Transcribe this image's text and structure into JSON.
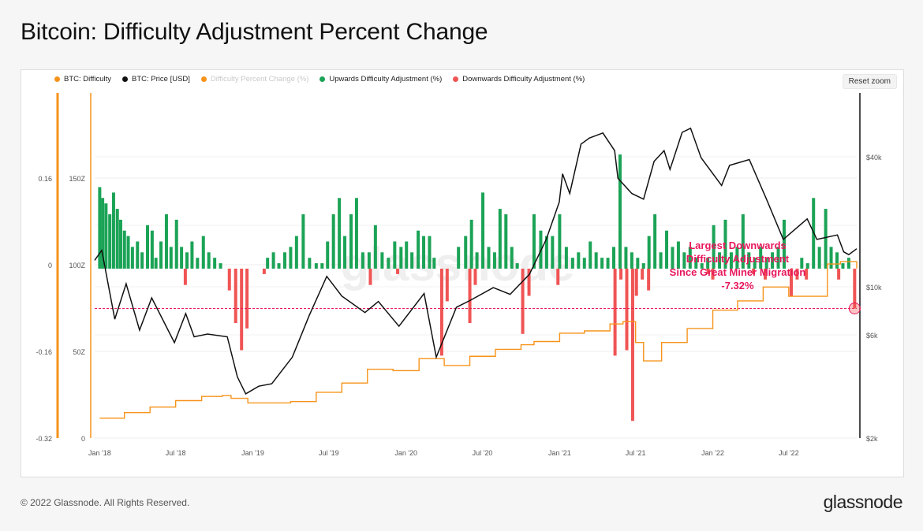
{
  "page": {
    "title": "Bitcoin: Difficulty Adjustment Percent Change"
  },
  "legend": [
    {
      "label": "BTC: Difficulty",
      "color": "#f7931a",
      "muted": false
    },
    {
      "label": "BTC: Price [USD]",
      "color": "#111111",
      "muted": false
    },
    {
      "label": "Difficulty Percent Change (%)",
      "color": "#f7931a",
      "muted": true
    },
    {
      "label": "Upwards Difficulty Adjustment (%)",
      "color": "#1ba356",
      "muted": false
    },
    {
      "label": "Downwards Difficulty Adjustment (%)",
      "color": "#f05454",
      "muted": false
    }
  ],
  "controls": {
    "reset_zoom": "Reset zoom"
  },
  "annotation": {
    "lines": [
      "Largest Downwards",
      "Difficulty Adjustment",
      "Since Great Miner Migration",
      "-7.32%"
    ]
  },
  "footer": {
    "copyright": "© 2022 Glassnode. All Rights Reserved.",
    "brand": "glassnode"
  },
  "colors": {
    "difficulty": "#f7931a",
    "price": "#111111",
    "up": "#1ba356",
    "down": "#f05454",
    "annotation": "#e8175d"
  },
  "chart_data": {
    "type": "bar",
    "x_range": [
      "2017-12-20",
      "2022-12-10"
    ],
    "x_ticks": [
      "Jan '18",
      "Jul '18",
      "Jan '19",
      "Jul '19",
      "Jan '20",
      "Jul '20",
      "Jan '21",
      "Jul '21",
      "Jan '22",
      "Jul '22"
    ],
    "y_axes": {
      "pct_change": {
        "ticks": [
          "0.16",
          "0",
          "-0.16",
          "-0.32"
        ],
        "range": [
          -0.32,
          0.32
        ]
      },
      "difficulty": {
        "ticks": [
          "150Z",
          "100Z",
          "50Z",
          "0"
        ],
        "range": [
          0,
          200
        ]
      },
      "price": {
        "ticks": [
          "$40k",
          "$10k",
          "$6k",
          "$2k"
        ],
        "scale": "log",
        "range": [
          2000,
          100000
        ]
      }
    },
    "reference_line": {
      "value": -0.0732,
      "label": "-7.32%"
    },
    "series": [
      {
        "name": "Upwards Difficulty Adjustment (%)",
        "x": [
          "2018-01-01",
          "2018-01-08",
          "2018-01-16",
          "2018-01-25",
          "2018-02-03",
          "2018-02-12",
          "2018-02-20",
          "2018-03-01",
          "2018-03-10",
          "2018-03-20",
          "2018-04-01",
          "2018-04-12",
          "2018-04-25",
          "2018-05-06",
          "2018-05-15",
          "2018-05-27",
          "2018-06-09",
          "2018-06-20",
          "2018-07-03",
          "2018-07-15",
          "2018-07-28",
          "2018-08-09",
          "2018-08-22",
          "2018-09-05",
          "2018-09-18",
          "2018-10-02",
          "2018-10-16",
          "2019-02-05",
          "2019-02-19",
          "2019-03-04",
          "2019-03-18",
          "2019-04-01",
          "2019-04-15",
          "2019-05-01",
          "2019-05-16",
          "2019-06-01",
          "2019-06-15",
          "2019-06-28",
          "2019-07-12",
          "2019-07-26",
          "2019-08-08",
          "2019-08-23",
          "2019-09-05",
          "2019-09-20",
          "2019-10-05",
          "2019-10-20",
          "2019-11-05",
          "2019-11-20",
          "2019-12-05",
          "2019-12-20",
          "2020-01-02",
          "2020-01-15",
          "2020-01-30",
          "2020-02-12",
          "2020-02-26",
          "2020-03-08",
          "2020-05-05",
          "2020-05-22",
          "2020-06-05",
          "2020-06-18",
          "2020-07-02",
          "2020-07-16",
          "2020-07-30",
          "2020-08-12",
          "2020-08-26",
          "2020-09-09",
          "2020-09-22",
          "2020-11-01",
          "2020-11-17",
          "2020-12-01",
          "2020-12-15",
          "2021-01-01",
          "2021-01-17",
          "2021-02-01",
          "2021-02-15",
          "2021-03-01",
          "2021-03-15",
          "2021-03-29",
          "2021-04-12",
          "2021-04-26",
          "2021-05-10",
          "2021-05-25",
          "2021-06-08",
          "2021-06-22",
          "2021-07-06",
          "2021-07-20",
          "2021-08-02",
          "2021-08-16",
          "2021-08-30",
          "2021-09-13",
          "2021-09-27",
          "2021-10-11",
          "2021-10-25",
          "2021-11-08",
          "2021-11-22",
          "2021-12-06",
          "2021-12-20",
          "2022-01-03",
          "2022-01-17",
          "2022-01-31",
          "2022-02-14",
          "2022-02-28",
          "2022-03-14",
          "2022-03-28",
          "2022-04-11",
          "2022-04-25",
          "2022-05-09",
          "2022-05-23",
          "2022-06-06",
          "2022-06-20",
          "2022-08-01",
          "2022-08-15",
          "2022-08-29",
          "2022-09-12",
          "2022-09-27",
          "2022-10-10",
          "2022-10-24",
          "2022-11-07",
          "2022-11-21"
        ],
        "values": [
          0.15,
          0.13,
          0.12,
          0.1,
          0.14,
          0.11,
          0.09,
          0.07,
          0.06,
          0.04,
          0.05,
          0.03,
          0.08,
          0.07,
          0.02,
          0.05,
          0.1,
          0.04,
          0.09,
          0.04,
          0.03,
          0.05,
          0.02,
          0.06,
          0.03,
          0.02,
          0.01,
          0.02,
          0.03,
          0.01,
          0.03,
          0.04,
          0.06,
          0.1,
          0.02,
          0.01,
          0.01,
          0.05,
          0.1,
          0.13,
          0.06,
          0.1,
          0.13,
          0.03,
          0.03,
          0.08,
          0.03,
          0.02,
          0.05,
          0.04,
          0.05,
          0.03,
          0.07,
          0.06,
          0.06,
          0.02,
          0.04,
          0.06,
          0.09,
          0.03,
          0.14,
          0.04,
          0.03,
          0.11,
          0.1,
          0.04,
          0.01,
          0.1,
          0.07,
          0.06,
          0.06,
          0.1,
          0.04,
          0.02,
          0.03,
          0.02,
          0.05,
          0.03,
          0.02,
          0.02,
          0.04,
          0.21,
          0.04,
          0.03,
          0.02,
          0.01,
          0.06,
          0.1,
          0.03,
          0.07,
          0.04,
          0.05,
          0.03,
          0.04,
          0.02,
          0.01,
          0.02,
          0.08,
          0.03,
          0.09,
          0.03,
          0.04,
          0.1,
          0.03,
          0.02,
          0.04,
          0.02,
          0.03,
          0.04,
          0.09,
          0.02,
          0.01,
          0.13,
          0.04,
          0.11,
          0.04,
          0.03,
          0.01,
          0.02
        ]
      },
      {
        "name": "Downwards Difficulty Adjustment (%)",
        "x": [
          "2018-07-24",
          "2018-11-06",
          "2018-11-21",
          "2018-12-05",
          "2018-12-18",
          "2019-01-28",
          "2019-10-08",
          "2019-12-12",
          "2020-03-26",
          "2020-04-08",
          "2020-06-01",
          "2020-06-14",
          "2020-10-05",
          "2020-10-20",
          "2020-12-28",
          "2021-05-13",
          "2021-05-27",
          "2021-06-10",
          "2021-06-24",
          "2021-07-03",
          "2021-07-17",
          "2021-08-01",
          "2021-12-21",
          "2022-01-01",
          "2022-04-08",
          "2022-05-06",
          "2022-07-07",
          "2022-07-21",
          "2022-08-12",
          "2022-10-28",
          "2022-12-05"
        ],
        "values": [
          -0.03,
          -0.04,
          -0.1,
          -0.15,
          -0.11,
          -0.01,
          -0.03,
          -0.01,
          -0.16,
          -0.06,
          -0.1,
          -0.03,
          -0.12,
          -0.05,
          -0.03,
          -0.16,
          -0.02,
          -0.15,
          -0.28,
          -0.05,
          -0.02,
          -0.04,
          -0.01,
          -0.02,
          -0.01,
          -0.02,
          -0.05,
          -0.02,
          -0.02,
          -0.02,
          -0.0732
        ]
      },
      {
        "name": "BTC: Difficulty",
        "x": [
          "2018-01-01",
          "2018-03-01",
          "2018-05-01",
          "2018-07-01",
          "2018-09-01",
          "2018-10-20",
          "2018-11-10",
          "2018-12-20",
          "2019-02-01",
          "2019-04-01",
          "2019-06-01",
          "2019-08-01",
          "2019-10-01",
          "2019-12-01",
          "2020-02-01",
          "2020-04-01",
          "2020-06-01",
          "2020-08-01",
          "2020-10-01",
          "2020-11-01",
          "2021-01-01",
          "2021-03-01",
          "2021-05-01",
          "2021-06-01",
          "2021-07-01",
          "2021-07-20",
          "2021-09-01",
          "2021-11-01",
          "2022-01-01",
          "2022-03-01",
          "2022-05-01",
          "2022-07-01",
          "2022-08-20",
          "2022-10-01",
          "2022-11-01",
          "2022-12-01",
          "2022-12-10"
        ],
        "values": [
          2.6,
          3.8,
          5.0,
          6.4,
          7.3,
          7.5,
          6.9,
          5.9,
          5.9,
          6.2,
          8.2,
          10.2,
          13.2,
          12.9,
          15.5,
          14.0,
          16.0,
          17.5,
          18.5,
          19.2,
          21.0,
          21.5,
          23.0,
          23.5,
          19.0,
          15.0,
          19.0,
          22.0,
          26.0,
          28.0,
          31.0,
          29.0,
          29.0,
          36.0,
          36.5,
          36.5,
          35.0
        ]
      },
      {
        "name": "BTC: Price [USD]",
        "x": [
          "2017-12-20",
          "2018-01-06",
          "2018-02-06",
          "2018-03-05",
          "2018-04-06",
          "2018-05-05",
          "2018-06-28",
          "2018-07-25",
          "2018-08-14",
          "2018-09-15",
          "2018-11-01",
          "2018-11-25",
          "2018-12-15",
          "2019-01-15",
          "2019-02-15",
          "2019-04-05",
          "2019-05-15",
          "2019-06-26",
          "2019-08-01",
          "2019-09-25",
          "2019-10-27",
          "2019-12-15",
          "2020-02-13",
          "2020-03-13",
          "2020-04-30",
          "2020-06-01",
          "2020-07-27",
          "2020-09-05",
          "2020-10-21",
          "2020-11-30",
          "2020-12-31",
          "2021-01-08",
          "2021-01-25",
          "2021-02-21",
          "2021-03-13",
          "2021-04-14",
          "2021-05-12",
          "2021-05-20",
          "2021-06-22",
          "2021-07-20",
          "2021-08-14",
          "2021-09-07",
          "2021-09-21",
          "2021-10-20",
          "2021-11-09",
          "2021-12-04",
          "2022-01-22",
          "2022-02-10",
          "2022-03-29",
          "2022-05-09",
          "2022-06-18",
          "2022-08-14",
          "2022-09-06",
          "2022-10-25",
          "2022-11-09",
          "2022-11-21",
          "2022-12-10"
        ],
        "values": [
          15000,
          16800,
          7700,
          11500,
          6800,
          9800,
          5900,
          8200,
          6300,
          6500,
          6300,
          4000,
          3300,
          3600,
          3700,
          5000,
          8000,
          12500,
          10000,
          8300,
          9400,
          7100,
          10300,
          5000,
          8800,
          9500,
          11000,
          10200,
          12800,
          19000,
          29000,
          40000,
          32000,
          56000,
          60000,
          63500,
          52000,
          38000,
          32000,
          30000,
          46000,
          52000,
          42000,
          64000,
          67000,
          48000,
          35000,
          44000,
          47000,
          30000,
          19000,
          24000,
          19000,
          20000,
          16500,
          16000,
          17100
        ]
      }
    ]
  }
}
